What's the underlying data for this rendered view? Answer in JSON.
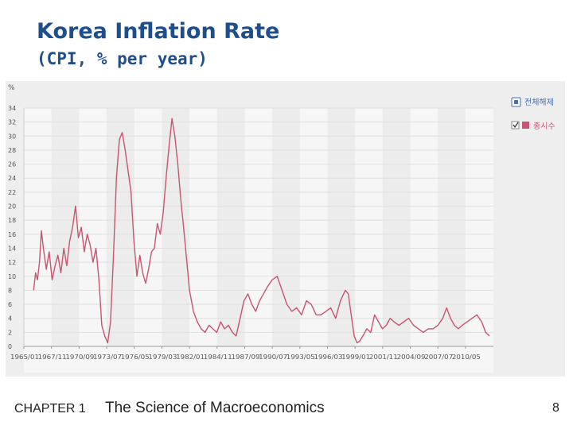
{
  "slide": {
    "title": "Korea Inflation Rate",
    "subtitle": "(CPI, % per year)",
    "chapter": "CHAPTER 1",
    "chapter_title": "The Science of Macroeconomics",
    "page_number": "8"
  },
  "chart_data": {
    "type": "line",
    "title": "Korea Inflation Rate",
    "ylabel": "%",
    "xlabel": "",
    "ylim": [
      0,
      34
    ],
    "yticks": [
      0,
      2,
      4,
      6,
      8,
      10,
      12,
      14,
      16,
      18,
      20,
      22,
      24,
      26,
      28,
      30,
      32,
      34
    ],
    "xlim": [
      1965.0,
      2013.2
    ],
    "xtick_positions": [
      1965.0,
      1967.83,
      1970.67,
      1973.5,
      1976.33,
      1979.17,
      1982.0,
      1984.83,
      1987.67,
      1990.5,
      1993.33,
      1996.17,
      1999.0,
      2001.83,
      2004.67,
      2007.5,
      2010.33
    ],
    "xtick_labels": [
      "1965/01",
      "1967/11",
      "1970/09",
      "1973/07",
      "1976/05",
      "1979/03",
      "1982/01",
      "1984/11",
      "1987/09",
      "1990/07",
      "1993/05",
      "1996/03",
      "1999/01",
      "2001/11",
      "2004/09",
      "2007/07",
      "2010/05"
    ],
    "grid": true,
    "legend": [
      {
        "label": "전체해제",
        "icon": "clear-all-icon",
        "color": "#4a6fb5"
      },
      {
        "label": "종시수",
        "icon": "series-checkbox-icon",
        "color": "#c85570"
      }
    ],
    "series": [
      {
        "name": "종시수",
        "color": "#c85570",
        "x": [
          1966.0,
          1966.2,
          1966.4,
          1966.6,
          1966.8,
          1967.0,
          1967.3,
          1967.6,
          1967.9,
          1968.2,
          1968.5,
          1968.8,
          1969.1,
          1969.4,
          1969.7,
          1970.0,
          1970.3,
          1970.6,
          1970.9,
          1971.2,
          1971.5,
          1971.8,
          1972.1,
          1972.4,
          1972.7,
          1973.0,
          1973.3,
          1973.6,
          1973.9,
          1974.2,
          1974.5,
          1974.8,
          1975.1,
          1975.4,
          1975.7,
          1976.0,
          1976.3,
          1976.6,
          1976.9,
          1977.2,
          1977.5,
          1977.8,
          1978.1,
          1978.4,
          1978.7,
          1979.0,
          1979.3,
          1979.6,
          1979.9,
          1980.2,
          1980.5,
          1980.8,
          1981.1,
          1981.4,
          1981.7,
          1982.0,
          1982.4,
          1982.8,
          1983.2,
          1983.6,
          1984.0,
          1984.4,
          1984.8,
          1985.2,
          1985.6,
          1986.0,
          1986.4,
          1986.8,
          1987.2,
          1987.6,
          1988.0,
          1988.4,
          1988.8,
          1989.2,
          1989.6,
          1990.0,
          1990.5,
          1991.0,
          1991.5,
          1992.0,
          1992.5,
          1993.0,
          1993.5,
          1994.0,
          1994.5,
          1995.0,
          1995.5,
          1996.0,
          1996.5,
          1997.0,
          1997.5,
          1998.0,
          1998.3,
          1998.6,
          1998.9,
          1999.2,
          1999.5,
          1999.8,
          2000.2,
          2000.6,
          2001.0,
          2001.4,
          2001.8,
          2002.2,
          2002.6,
          2003.0,
          2003.5,
          2004.0,
          2004.5,
          2005.0,
          2005.5,
          2006.0,
          2006.5,
          2007.0,
          2007.5,
          2008.0,
          2008.4,
          2008.8,
          2009.2,
          2009.6,
          2010.0,
          2010.5,
          2011.0,
          2011.5,
          2012.0,
          2012.4,
          2012.8
        ],
        "values": [
          8.0,
          10.5,
          9.5,
          12.0,
          16.5,
          14.0,
          11.0,
          13.5,
          9.5,
          11.5,
          13.0,
          10.5,
          14.0,
          11.5,
          15.0,
          17.0,
          20.0,
          15.5,
          17.0,
          13.5,
          16.0,
          14.5,
          12.0,
          14.0,
          9.5,
          3.0,
          1.5,
          0.5,
          3.5,
          13.0,
          24.0,
          29.5,
          30.5,
          28.0,
          25.0,
          22.0,
          15.0,
          10.0,
          13.0,
          10.5,
          9.0,
          11.0,
          13.5,
          14.0,
          17.5,
          16.0,
          19.0,
          24.0,
          28.5,
          32.5,
          30.0,
          26.0,
          21.0,
          17.0,
          12.5,
          8.0,
          5.0,
          3.5,
          2.5,
          2.0,
          3.0,
          2.5,
          2.0,
          3.5,
          2.5,
          3.0,
          2.0,
          1.5,
          4.0,
          6.5,
          7.5,
          6.0,
          5.0,
          6.5,
          7.5,
          8.5,
          9.5,
          10.0,
          8.0,
          6.0,
          5.0,
          5.5,
          4.5,
          6.5,
          6.0,
          4.5,
          4.5,
          5.0,
          5.5,
          4.0,
          6.5,
          8.0,
          7.5,
          4.5,
          1.5,
          0.5,
          0.8,
          1.5,
          2.5,
          2.0,
          4.5,
          3.5,
          2.5,
          3.0,
          4.0,
          3.5,
          3.0,
          3.5,
          4.0,
          3.0,
          2.5,
          2.0,
          2.5,
          2.5,
          3.0,
          4.0,
          5.5,
          4.0,
          3.0,
          2.5,
          3.0,
          3.5,
          4.0,
          4.5,
          3.5,
          2.0,
          1.5
        ]
      }
    ]
  }
}
